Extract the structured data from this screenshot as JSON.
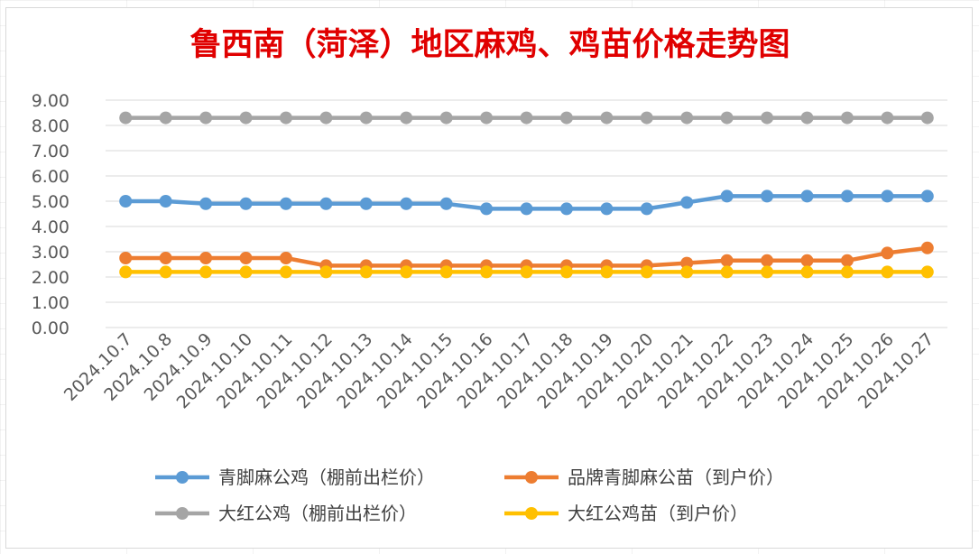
{
  "chart_data": {
    "type": "line",
    "title": "鲁西南（菏泽）地区麻鸡、鸡苗价格走势图",
    "xlabel": "",
    "ylabel": "",
    "ylim": [
      0,
      9
    ],
    "ytick_step": 1,
    "ytick_labels": [
      "0.00",
      "1.00",
      "2.00",
      "3.00",
      "4.00",
      "5.00",
      "6.00",
      "7.00",
      "8.00",
      "9.00"
    ],
    "grid": true,
    "legend_position": "bottom",
    "categories": [
      "2024.10.7",
      "2024.10.8",
      "2024.10.9",
      "2024.10.10",
      "2024.10.11",
      "2024.10.12",
      "2024.10.13",
      "2024.10.14",
      "2024.10.15",
      "2024.10.16",
      "2024.10.17",
      "2024.10.18",
      "2024.10.19",
      "2024.10.20",
      "2024.10.21",
      "2024.10.22",
      "2024.10.23",
      "2024.10.24",
      "2024.10.25",
      "2024.10.26",
      "2024.10.27"
    ],
    "series": [
      {
        "name": "青脚麻公鸡（棚前出栏价）",
        "color": "#5b9bd5",
        "values": [
          5.0,
          5.0,
          4.9,
          4.9,
          4.9,
          4.9,
          4.9,
          4.9,
          4.9,
          4.7,
          4.7,
          4.7,
          4.7,
          4.7,
          4.95,
          5.2,
          5.2,
          5.2,
          5.2,
          5.2,
          5.2
        ]
      },
      {
        "name": "品牌青脚麻公苗（到户价）",
        "color": "#ed7d31",
        "values": [
          2.75,
          2.75,
          2.75,
          2.75,
          2.75,
          2.45,
          2.45,
          2.45,
          2.45,
          2.45,
          2.45,
          2.45,
          2.45,
          2.45,
          2.55,
          2.65,
          2.65,
          2.65,
          2.65,
          2.95,
          3.15
        ]
      },
      {
        "name": "大红公鸡（棚前出栏价）",
        "color": "#a5a5a5",
        "values": [
          8.3,
          8.3,
          8.3,
          8.3,
          8.3,
          8.3,
          8.3,
          8.3,
          8.3,
          8.3,
          8.3,
          8.3,
          8.3,
          8.3,
          8.3,
          8.3,
          8.3,
          8.3,
          8.3,
          8.3,
          8.3
        ]
      },
      {
        "name": "大红公鸡苗（到户价）",
        "color": "#ffc000",
        "values": [
          2.2,
          2.2,
          2.2,
          2.2,
          2.2,
          2.2,
          2.2,
          2.2,
          2.2,
          2.2,
          2.2,
          2.2,
          2.2,
          2.2,
          2.2,
          2.2,
          2.2,
          2.2,
          2.2,
          2.2,
          2.2
        ]
      }
    ]
  }
}
